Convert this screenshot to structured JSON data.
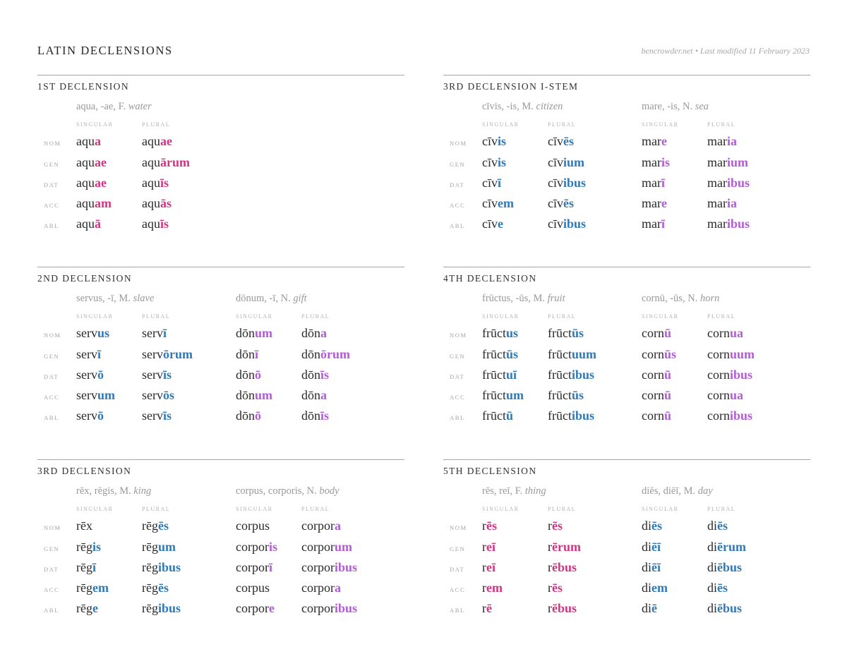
{
  "header": {
    "title": "LATIN DECLENSIONS",
    "meta": "bencrowder.net • Last modified 11 February 2023"
  },
  "labels": {
    "singular": "SINGULAR",
    "plural": "PLURAL",
    "cases": [
      "NOM",
      "GEN",
      "DAT",
      "ACC",
      "ABL"
    ]
  },
  "colors": {
    "pink": "#d63384",
    "blue": "#2f7ab8",
    "purple": "#b45bd6",
    "text": "#2a2a2a",
    "rule": "#a6a6a6"
  },
  "sections": [
    {
      "title": "1ST DECLENSION",
      "nouns": [
        {
          "lemma": "aqua, -ae, F.",
          "gloss": "water",
          "color": "pink",
          "singular": [
            [
              "aqu",
              "a"
            ],
            [
              "aqu",
              "ae"
            ],
            [
              "aqu",
              "ae"
            ],
            [
              "aqu",
              "am"
            ],
            [
              "aqu",
              "ā"
            ]
          ],
          "plural": [
            [
              "aqu",
              "ae"
            ],
            [
              "aqu",
              "ārum"
            ],
            [
              "aqu",
              "īs"
            ],
            [
              "aqu",
              "ās"
            ],
            [
              "aqu",
              "īs"
            ]
          ]
        }
      ]
    },
    {
      "title": "3RD DECLENSION I-STEM",
      "nouns": [
        {
          "lemma": "cīvis, -is, M.",
          "gloss": "citizen",
          "color": "blue",
          "singular": [
            [
              "cīv",
              "is"
            ],
            [
              "cīv",
              "is"
            ],
            [
              "cīv",
              "ī"
            ],
            [
              "cīv",
              "em"
            ],
            [
              "cīv",
              "e"
            ]
          ],
          "plural": [
            [
              "cīv",
              "ēs"
            ],
            [
              "cīv",
              "ium"
            ],
            [
              "cīv",
              "ibus"
            ],
            [
              "cīv",
              "ēs"
            ],
            [
              "cīv",
              "ibus"
            ]
          ]
        },
        {
          "lemma": "mare, -is, N.",
          "gloss": "sea",
          "color": "purple",
          "singular": [
            [
              "mar",
              "e"
            ],
            [
              "mar",
              "is"
            ],
            [
              "mar",
              "ī"
            ],
            [
              "mar",
              "e"
            ],
            [
              "mar",
              "ī"
            ]
          ],
          "plural": [
            [
              "mar",
              "ia"
            ],
            [
              "mar",
              "ium"
            ],
            [
              "mar",
              "ibus"
            ],
            [
              "mar",
              "ia"
            ],
            [
              "mar",
              "ibus"
            ]
          ]
        }
      ]
    },
    {
      "title": "2ND DECLENSION",
      "nouns": [
        {
          "lemma": "servus, -ī, M.",
          "gloss": "slave",
          "color": "blue",
          "singular": [
            [
              "serv",
              "us"
            ],
            [
              "serv",
              "ī"
            ],
            [
              "serv",
              "ō"
            ],
            [
              "serv",
              "um"
            ],
            [
              "serv",
              "ō"
            ]
          ],
          "plural": [
            [
              "serv",
              "ī"
            ],
            [
              "serv",
              "ōrum"
            ],
            [
              "serv",
              "īs"
            ],
            [
              "serv",
              "ōs"
            ],
            [
              "serv",
              "īs"
            ]
          ]
        },
        {
          "lemma": "dōnum, -ī, N.",
          "gloss": "gift",
          "color": "purple",
          "singular": [
            [
              "dōn",
              "um"
            ],
            [
              "dōn",
              "ī"
            ],
            [
              "dōn",
              "ō"
            ],
            [
              "dōn",
              "um"
            ],
            [
              "dōn",
              "ō"
            ]
          ],
          "plural": [
            [
              "dōn",
              "a"
            ],
            [
              "dōn",
              "ōrum"
            ],
            [
              "dōn",
              "īs"
            ],
            [
              "dōn",
              "a"
            ],
            [
              "dōn",
              "īs"
            ]
          ]
        }
      ]
    },
    {
      "title": "4TH DECLENSION",
      "nouns": [
        {
          "lemma": "frūctus, -ūs, M.",
          "gloss": "fruit",
          "color": "blue",
          "singular": [
            [
              "frūct",
              "us"
            ],
            [
              "frūct",
              "ūs"
            ],
            [
              "frūct",
              "uī"
            ],
            [
              "frūct",
              "um"
            ],
            [
              "frūct",
              "ū"
            ]
          ],
          "plural": [
            [
              "frūct",
              "ūs"
            ],
            [
              "frūct",
              "uum"
            ],
            [
              "frūct",
              "ibus"
            ],
            [
              "frūct",
              "ūs"
            ],
            [
              "frūct",
              "ibus"
            ]
          ]
        },
        {
          "lemma": "cornū, -ūs, N.",
          "gloss": "horn",
          "color": "purple",
          "singular": [
            [
              "corn",
              "ū"
            ],
            [
              "corn",
              "ūs"
            ],
            [
              "corn",
              "ū"
            ],
            [
              "corn",
              "ū"
            ],
            [
              "corn",
              "ū"
            ]
          ],
          "plural": [
            [
              "corn",
              "ua"
            ],
            [
              "corn",
              "uum"
            ],
            [
              "corn",
              "ibus"
            ],
            [
              "corn",
              "ua"
            ],
            [
              "corn",
              "ibus"
            ]
          ]
        }
      ]
    },
    {
      "title": "3RD DECLENSION",
      "nouns": [
        {
          "lemma": "rēx, rēgis, M.",
          "gloss": "king",
          "color": "blue",
          "singular": [
            [
              "rēx",
              ""
            ],
            [
              "rēg",
              "is"
            ],
            [
              "rēg",
              "ī"
            ],
            [
              "rēg",
              "em"
            ],
            [
              "rēg",
              "e"
            ]
          ],
          "plural": [
            [
              "rēg",
              "ēs"
            ],
            [
              "rēg",
              "um"
            ],
            [
              "rēg",
              "ibus"
            ],
            [
              "rēg",
              "ēs"
            ],
            [
              "rēg",
              "ibus"
            ]
          ]
        },
        {
          "lemma": "corpus, corporis, N.",
          "gloss": "body",
          "color": "purple",
          "singular": [
            [
              "corpus",
              ""
            ],
            [
              "corpor",
              "is"
            ],
            [
              "corpor",
              "ī"
            ],
            [
              "corpus",
              ""
            ],
            [
              "corpor",
              "e"
            ]
          ],
          "plural": [
            [
              "corpor",
              "a"
            ],
            [
              "corpor",
              "um"
            ],
            [
              "corpor",
              "ibus"
            ],
            [
              "corpor",
              "a"
            ],
            [
              "corpor",
              "ibus"
            ]
          ]
        }
      ]
    },
    {
      "title": "5TH DECLENSION",
      "nouns": [
        {
          "lemma": "rēs, reī, F.",
          "gloss": "thing",
          "color": "pink",
          "singular": [
            [
              "r",
              "ēs"
            ],
            [
              "r",
              "eī"
            ],
            [
              "r",
              "eī"
            ],
            [
              "r",
              "em"
            ],
            [
              "r",
              "ē"
            ]
          ],
          "plural": [
            [
              "r",
              "ēs"
            ],
            [
              "r",
              "ērum"
            ],
            [
              "r",
              "ēbus"
            ],
            [
              "r",
              "ēs"
            ],
            [
              "r",
              "ēbus"
            ]
          ]
        },
        {
          "lemma": "diēs, diēī, M.",
          "gloss": "day",
          "color": "blue",
          "singular": [
            [
              "di",
              "ēs"
            ],
            [
              "di",
              "ēī"
            ],
            [
              "di",
              "ēī"
            ],
            [
              "di",
              "em"
            ],
            [
              "di",
              "ē"
            ]
          ],
          "plural": [
            [
              "di",
              "ēs"
            ],
            [
              "di",
              "ērum"
            ],
            [
              "di",
              "ēbus"
            ],
            [
              "di",
              "ēs"
            ],
            [
              "di",
              "ēbus"
            ]
          ]
        }
      ]
    }
  ]
}
